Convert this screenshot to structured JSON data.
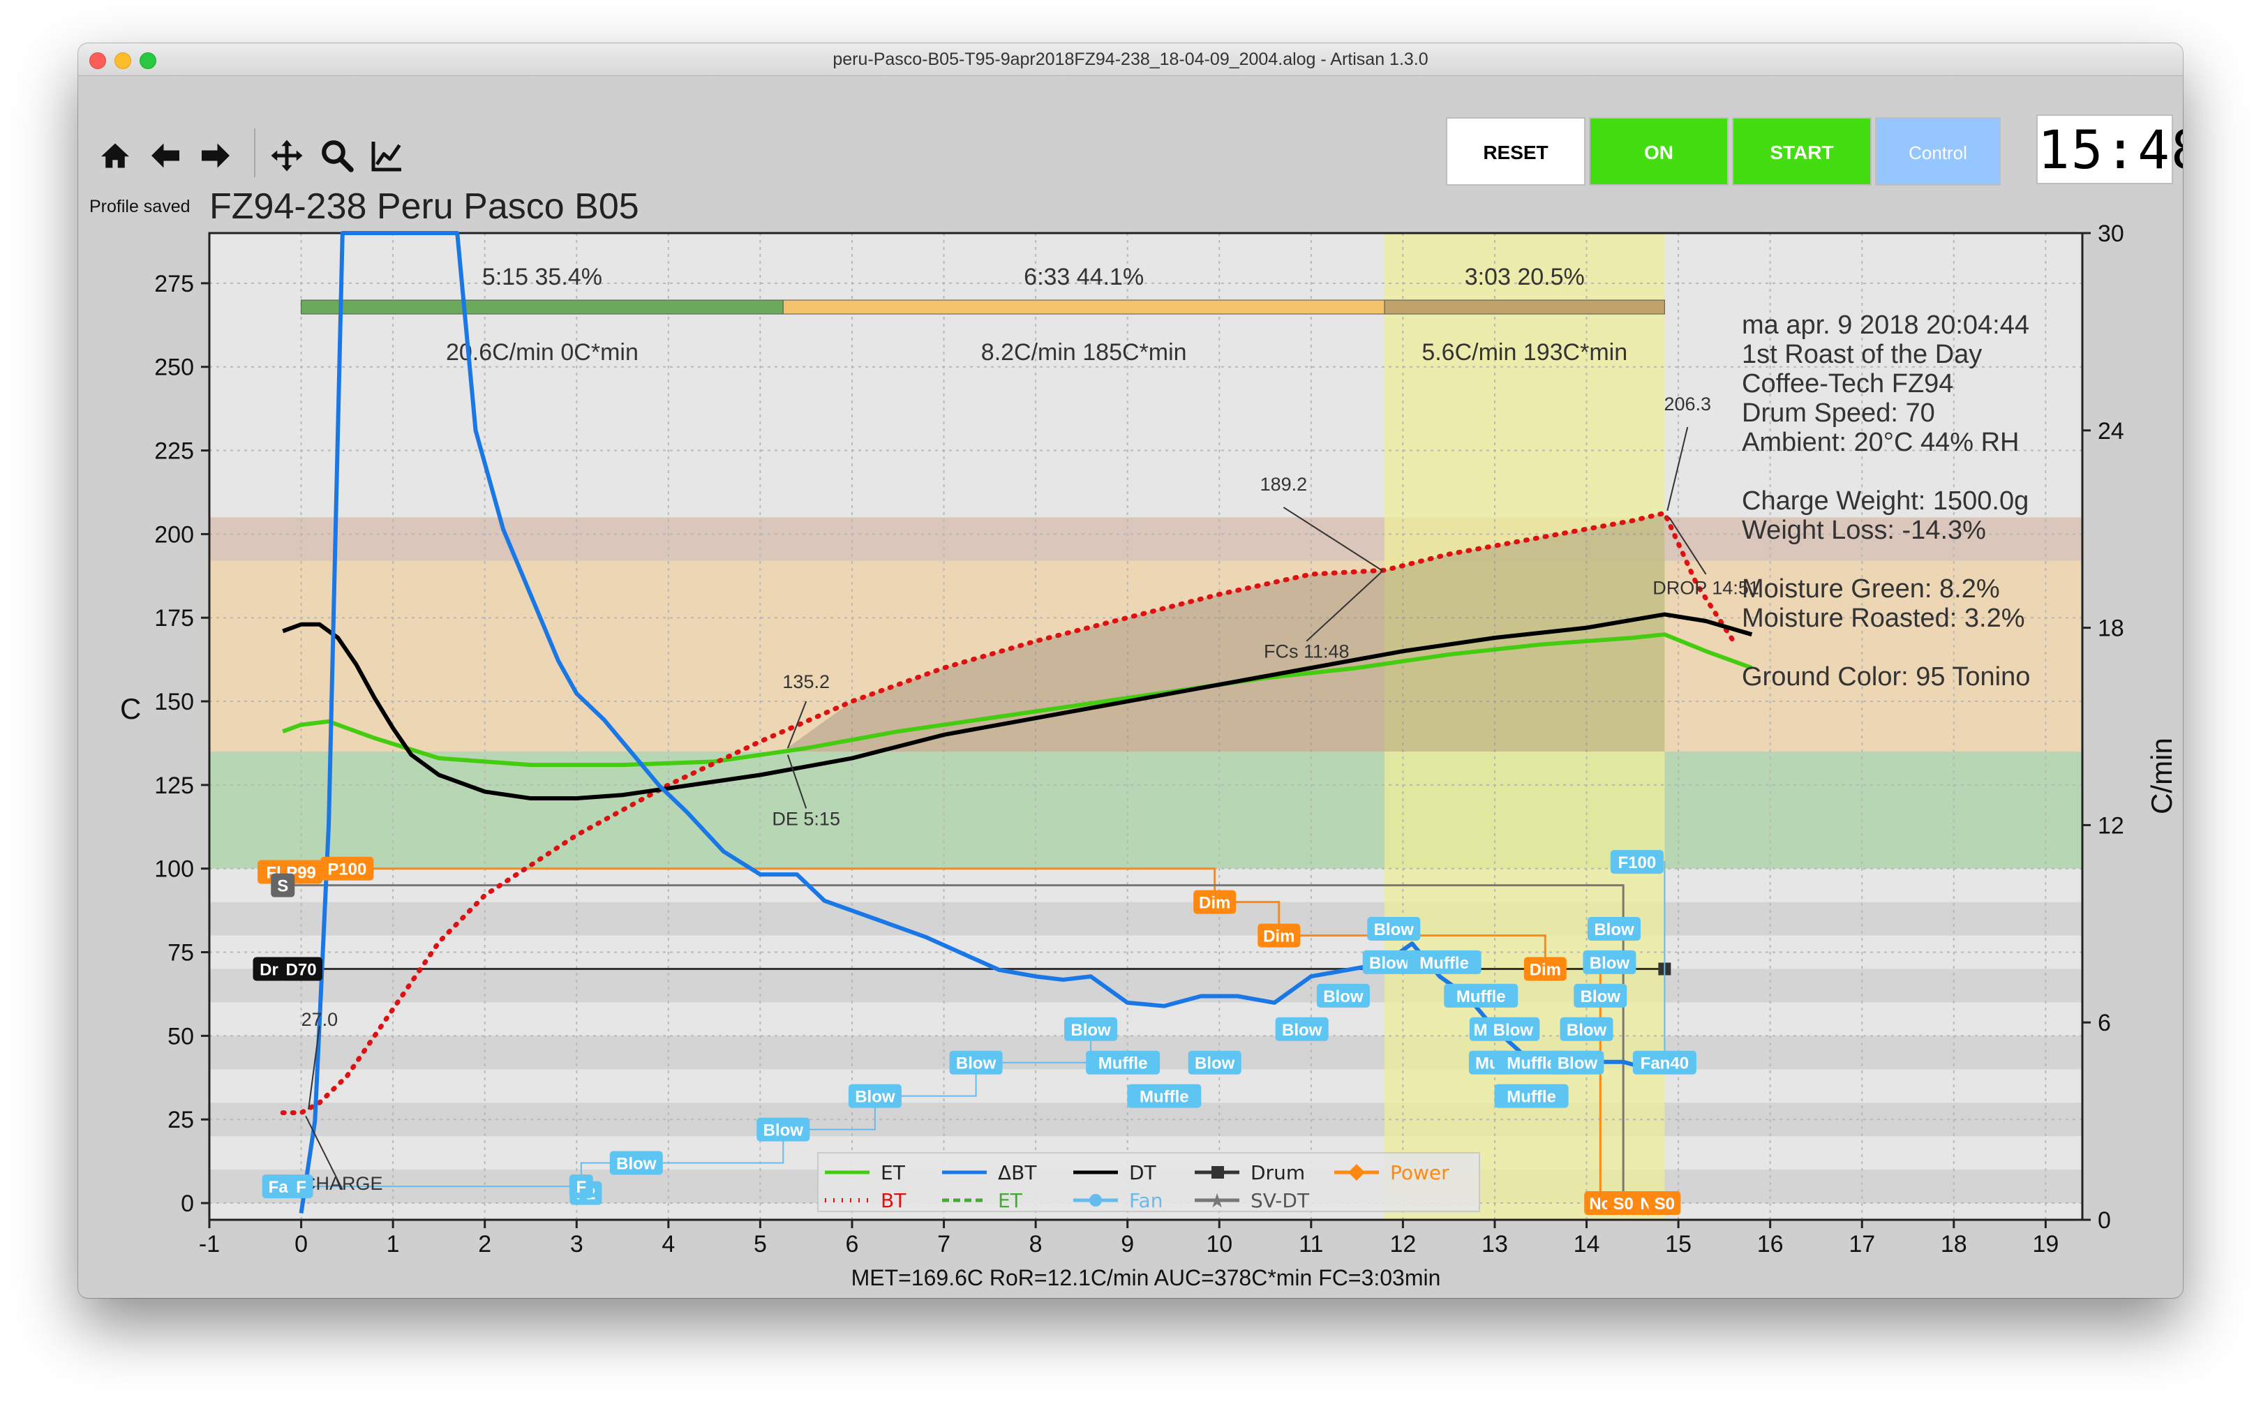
{
  "window": {
    "title": "peru-Pasco-B05-T95-9apr2018FZ94-238_18-04-09_2004.alog - Artisan 1.3.0"
  },
  "toolbar": {
    "icons": [
      "home-icon",
      "back-arrow-icon",
      "forward-arrow-icon",
      "pan-icon",
      "zoom-icon",
      "chart-options-icon"
    ],
    "status": "Profile saved"
  },
  "buttons": {
    "reset": "RESET",
    "on": "ON",
    "start": "START",
    "control": "Control"
  },
  "lcd": {
    "time": "15:48"
  },
  "chart_data": {
    "type": "line",
    "title": "FZ94-238 Peru Pasco B05",
    "ylabel": "C",
    "y2label": "C/min",
    "xlim": [
      -1,
      19.4
    ],
    "ylim": [
      -5,
      290
    ],
    "y2lim": [
      0,
      30
    ],
    "xticks": [
      -1,
      0,
      1,
      2,
      3,
      4,
      5,
      6,
      7,
      8,
      9,
      10,
      11,
      12,
      13,
      14,
      15,
      16,
      17,
      18,
      19
    ],
    "yticks": [
      0,
      25,
      50,
      75,
      100,
      125,
      150,
      175,
      200,
      225,
      250,
      275
    ],
    "y2ticks": [
      0,
      6,
      12,
      18,
      24,
      30
    ],
    "phases": [
      {
        "duration": "5:15",
        "percent": "35.4%",
        "ror": "20.6C/min",
        "auc": "0C*min",
        "start": 0,
        "end": 5.25,
        "color": "#6aaa5a"
      },
      {
        "duration": "6:33",
        "percent": "44.1%",
        "ror": "8.2C/min",
        "auc": "185C*min",
        "start": 5.25,
        "end": 11.8,
        "color": "#f3c26b"
      },
      {
        "duration": "3:03",
        "percent": "20.5%",
        "ror": "5.6C/min",
        "auc": "193C*min",
        "start": 11.8,
        "end": 14.85,
        "color": "#bfa36a"
      }
    ],
    "bands": [
      {
        "from": 100,
        "to": 135,
        "color": "#b7d6b4"
      },
      {
        "from": 135,
        "to": 192,
        "color": "#ecd6b4"
      },
      {
        "from": 192,
        "to": 205,
        "color": "#dbc6bc"
      }
    ],
    "fc_window": {
      "start": 11.8,
      "end": 14.85
    },
    "info": [
      "ma apr. 9 2018 20:04:44",
      "1st Roast of the Day",
      "Coffee-Tech FZ94",
      "Drum Speed: 70",
      "Ambient: 20°C  44% RH",
      "",
      "Charge Weight: 1500.0g",
      "Weight Loss: -14.3%",
      "",
      "Moisture Green: 8.2%",
      "Moisture Roasted: 3.2%",
      "",
      "Ground Color: 95 Tonino"
    ],
    "annotations": [
      {
        "text": "27.0",
        "x": 0.2,
        "y": 53
      },
      {
        "text": "CHARGE",
        "x": 0.45,
        "y": 4
      },
      {
        "text": "135.2",
        "x": 5.5,
        "y": 154
      },
      {
        "text": "DE 5:15",
        "x": 5.5,
        "y": 113
      },
      {
        "text": "189.2",
        "x": 10.7,
        "y": 213
      },
      {
        "text": "FCs 11:48",
        "x": 10.95,
        "y": 163
      },
      {
        "text": "206.3",
        "x": 15.1,
        "y": 237
      },
      {
        "text": "DROP 14:51",
        "x": 15.3,
        "y": 182
      }
    ],
    "summary": "MET=169.6C   RoR=12.1C/min   AUC=378C*min   FC=3:03min",
    "series": [
      {
        "name": "ET",
        "color": "#44cc11",
        "axis": "left",
        "x": [
          -0.2,
          0,
          0.3,
          0.8,
          1.5,
          2.5,
          3.5,
          4.5,
          5.5,
          6.5,
          7.5,
          8.5,
          9.5,
          10.5,
          11.5,
          12.5,
          13.5,
          14.5,
          14.85,
          15.3,
          15.8
        ],
        "y": [
          141,
          143,
          144,
          139,
          133,
          131,
          131,
          132,
          136,
          141,
          145,
          149,
          153,
          157,
          160,
          164,
          167,
          169,
          170,
          165,
          160
        ]
      },
      {
        "name": "BT",
        "color": "#dd1111",
        "axis": "left",
        "x": [
          -0.2,
          0,
          0.2,
          0.5,
          1,
          1.5,
          2,
          3,
          4,
          5,
          6,
          7,
          8,
          9,
          10,
          11,
          11.8,
          12.5,
          13.5,
          14.5,
          14.85,
          15.2,
          15.6
        ],
        "y": [
          27,
          27,
          30,
          38,
          58,
          78,
          92,
          110,
          125,
          138,
          150,
          160,
          168,
          175,
          182,
          188,
          189.2,
          194,
          199,
          204,
          206.3,
          185,
          168
        ]
      },
      {
        "name": "DT",
        "color": "#000000",
        "axis": "left",
        "x": [
          -0.2,
          0,
          0.2,
          0.4,
          0.6,
          0.8,
          1,
          1.2,
          1.5,
          2,
          2.5,
          3,
          3.5,
          4,
          5,
          6,
          7,
          8,
          9,
          10,
          11,
          12,
          13,
          14,
          14.85,
          15.3,
          15.8
        ],
        "y": [
          171,
          173,
          173,
          169,
          161,
          151,
          142,
          134,
          128,
          123,
          121,
          121,
          122,
          124,
          128,
          133,
          140,
          145,
          150,
          155,
          160,
          165,
          169,
          172,
          176,
          174,
          170
        ]
      },
      {
        "name": "ΔBT",
        "color": "#1a77e6",
        "axis": "right",
        "x": [
          0,
          0.15,
          0.3,
          0.45,
          1.7,
          1.9,
          2.2,
          2.5,
          2.8,
          3,
          3.3,
          3.6,
          3.9,
          4.2,
          4.6,
          5,
          5.4,
          5.7,
          6,
          6.4,
          6.8,
          7.2,
          7.6,
          8,
          8.3,
          8.6,
          9,
          9.4,
          9.8,
          10.2,
          10.6,
          11,
          11.4,
          11.8,
          12.1,
          12.4,
          12.7,
          13,
          13.4,
          13.8,
          14.1,
          14.4,
          14.8
        ],
        "y": [
          0.2,
          3,
          12,
          30,
          30,
          24,
          21,
          19,
          17,
          16,
          15.2,
          14.2,
          13.2,
          12.4,
          11.2,
          10.5,
          10.5,
          9.7,
          9.4,
          9,
          8.6,
          8.1,
          7.6,
          7.4,
          7.3,
          7.4,
          6.6,
          6.5,
          6.8,
          6.8,
          6.6,
          7.4,
          7.6,
          7.8,
          8.4,
          7.4,
          6.8,
          5.8,
          4.8,
          4.5,
          4.8,
          4.8,
          4.5
        ]
      }
    ],
    "control_series": [
      {
        "name": "ET",
        "color": "#44aa33",
        "style": "dashed"
      },
      {
        "name": "Drum",
        "color": "#333333",
        "style": "square"
      },
      {
        "name": "Fan",
        "color": "#66bbee",
        "style": "circle"
      },
      {
        "name": "SV-DT",
        "color": "#777777",
        "style": "star"
      },
      {
        "name": "Power",
        "color": "#ff8811",
        "style": "diamond"
      }
    ],
    "event_tags": [
      {
        "t": "Fa",
        "x": -0.25,
        "y": 5,
        "c": "blue"
      },
      {
        "t": "F",
        "x": 0.0,
        "y": 5,
        "c": "blue"
      },
      {
        "t": "F2",
        "x": 3.1,
        "y": 3,
        "c": "blue"
      },
      {
        "t": "F",
        "x": 3.05,
        "y": 5,
        "c": "blue"
      },
      {
        "t": "Blow",
        "x": 3.65,
        "y": 12,
        "c": "blue"
      },
      {
        "t": "Blow",
        "x": 5.25,
        "y": 22,
        "c": "blue"
      },
      {
        "t": "Blow",
        "x": 6.25,
        "y": 32,
        "c": "blue"
      },
      {
        "t": "Blow",
        "x": 7.35,
        "y": 42,
        "c": "blue"
      },
      {
        "t": "Blow",
        "x": 8.6,
        "y": 52,
        "c": "blue"
      },
      {
        "t": "Muffle",
        "x": 8.95,
        "y": 42,
        "c": "blue"
      },
      {
        "t": "Muffle",
        "x": 9.4,
        "y": 32,
        "c": "blue"
      },
      {
        "t": "Blow",
        "x": 9.95,
        "y": 42,
        "c": "blue"
      },
      {
        "t": "Blow",
        "x": 10.9,
        "y": 52,
        "c": "blue"
      },
      {
        "t": "Blow",
        "x": 11.35,
        "y": 62,
        "c": "blue"
      },
      {
        "t": "Blow",
        "x": 11.85,
        "y": 72,
        "c": "blue"
      },
      {
        "t": "Blow",
        "x": 11.9,
        "y": 82,
        "c": "blue"
      },
      {
        "t": "Muffle",
        "x": 12.45,
        "y": 72,
        "c": "blue"
      },
      {
        "t": "Muffle",
        "x": 12.85,
        "y": 62,
        "c": "blue"
      },
      {
        "t": "Mu",
        "x": 12.9,
        "y": 52,
        "c": "blue"
      },
      {
        "t": "Blow",
        "x": 13.2,
        "y": 52,
        "c": "blue"
      },
      {
        "t": "Muf",
        "x": 12.95,
        "y": 42,
        "c": "blue"
      },
      {
        "t": "Muffle",
        "x": 13.4,
        "y": 42,
        "c": "blue"
      },
      {
        "t": "Muffle",
        "x": 13.4,
        "y": 32,
        "c": "blue"
      },
      {
        "t": "Blow",
        "x": 13.9,
        "y": 42,
        "c": "blue"
      },
      {
        "t": "Blow",
        "x": 14.0,
        "y": 52,
        "c": "blue"
      },
      {
        "t": "Blow",
        "x": 14.15,
        "y": 62,
        "c": "blue"
      },
      {
        "t": "Blow",
        "x": 14.25,
        "y": 72,
        "c": "blue"
      },
      {
        "t": "Blow",
        "x": 14.3,
        "y": 82,
        "c": "blue"
      },
      {
        "t": "F100",
        "x": 14.55,
        "y": 102,
        "c": "blue"
      },
      {
        "t": "Fan40",
        "x": 14.85,
        "y": 42,
        "c": "blue"
      },
      {
        "t": "Fl",
        "x": -0.3,
        "y": 99,
        "c": "orange"
      },
      {
        "t": "P99",
        "x": 0.0,
        "y": 99,
        "c": "orange"
      },
      {
        "t": "P100",
        "x": 0.5,
        "y": 100,
        "c": "orange"
      },
      {
        "t": "Dim",
        "x": 9.95,
        "y": 90,
        "c": "orange"
      },
      {
        "t": "Dim",
        "x": 10.65,
        "y": 80,
        "c": "orange"
      },
      {
        "t": "Dim",
        "x": 13.55,
        "y": 70,
        "c": "orange"
      },
      {
        "t": "No",
        "x": 14.15,
        "y": 0,
        "c": "orange"
      },
      {
        "t": "S0",
        "x": 14.4,
        "y": 0,
        "c": "orange"
      },
      {
        "t": "N",
        "x": 14.65,
        "y": 0,
        "c": "orange"
      },
      {
        "t": "S0",
        "x": 14.85,
        "y": 0,
        "c": "orange"
      },
      {
        "t": "S",
        "x": -0.2,
        "y": 95,
        "c": "gray"
      },
      {
        "t": "Dr",
        "x": -0.35,
        "y": 70,
        "c": "black"
      },
      {
        "t": "D70",
        "x": 0.0,
        "y": 70,
        "c": "black"
      }
    ],
    "legend": [
      "ET",
      "ΔBT",
      "DT",
      "Drum",
      "Power",
      "BT",
      "ET",
      "Fan",
      "SV-DT"
    ]
  }
}
